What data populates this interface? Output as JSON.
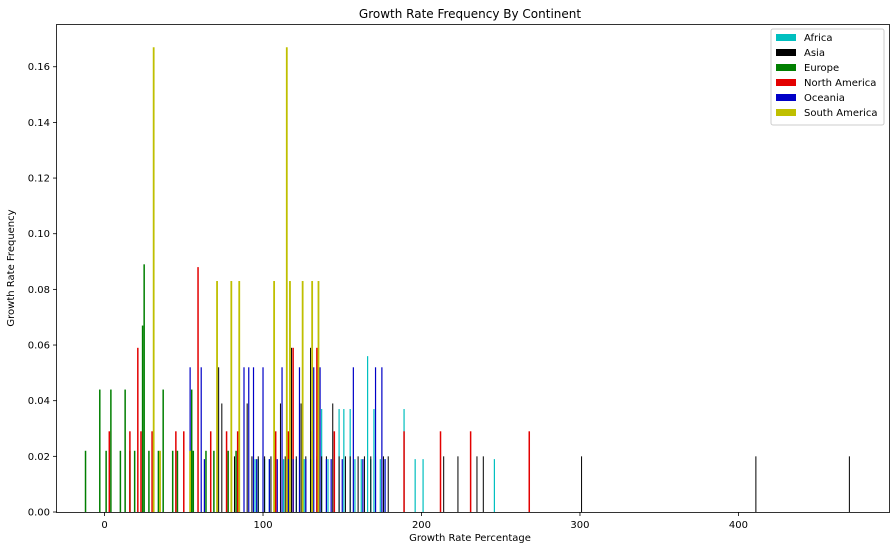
{
  "chart_data": {
    "type": "bar",
    "title": "Growth Rate Frequency By Continent",
    "xlabel": "Growth Rate Percentage",
    "ylabel": "Growth Rate Frequency",
    "xlim": [
      -30,
      495
    ],
    "ylim": [
      0,
      0.175
    ],
    "x_ticks": [
      0,
      100,
      200,
      300,
      400
    ],
    "y_ticks": [
      0.0,
      0.02,
      0.04,
      0.06,
      0.08,
      0.1,
      0.12,
      0.14,
      0.16
    ],
    "legend_position": "top-right",
    "grid": false,
    "series": [
      {
        "name": "Africa",
        "color": "#00bfbf",
        "width": 1.2,
        "points": [
          [
            95,
            0.019
          ],
          [
            97,
            0.019
          ],
          [
            101,
            0.019
          ],
          [
            104,
            0.019
          ],
          [
            108,
            0.019
          ],
          [
            113,
            0.019
          ],
          [
            117,
            0.019
          ],
          [
            121,
            0.019
          ],
          [
            126,
            0.019
          ],
          [
            130,
            0.019
          ],
          [
            134,
            0.019
          ],
          [
            137,
            0.037
          ],
          [
            141,
            0.019
          ],
          [
            145,
            0.019
          ],
          [
            148,
            0.037
          ],
          [
            151,
            0.037
          ],
          [
            155,
            0.037
          ],
          [
            158,
            0.019
          ],
          [
            162,
            0.019
          ],
          [
            166,
            0.056
          ],
          [
            168,
            0.019
          ],
          [
            170,
            0.037
          ],
          [
            174,
            0.019
          ],
          [
            177,
            0.019
          ],
          [
            189,
            0.037
          ],
          [
            196,
            0.019
          ],
          [
            201,
            0.019
          ],
          [
            246,
            0.019
          ]
        ]
      },
      {
        "name": "Asia",
        "color": "#000000",
        "width": 1.0,
        "points": [
          [
            72,
            0.052
          ],
          [
            74,
            0.039
          ],
          [
            82,
            0.02
          ],
          [
            85,
            0.052
          ],
          [
            90,
            0.039
          ],
          [
            93,
            0.02
          ],
          [
            97,
            0.02
          ],
          [
            101,
            0.02
          ],
          [
            105,
            0.02
          ],
          [
            108,
            0.02
          ],
          [
            111,
            0.039
          ],
          [
            114,
            0.02
          ],
          [
            118,
            0.059
          ],
          [
            121,
            0.02
          ],
          [
            124,
            0.039
          ],
          [
            127,
            0.02
          ],
          [
            130,
            0.059
          ],
          [
            134,
            0.02
          ],
          [
            137,
            0.02
          ],
          [
            140,
            0.02
          ],
          [
            144,
            0.039
          ],
          [
            148,
            0.02
          ],
          [
            152,
            0.02
          ],
          [
            155,
            0.02
          ],
          [
            160,
            0.02
          ],
          [
            164,
            0.02
          ],
          [
            168,
            0.02
          ],
          [
            171,
            0.02
          ],
          [
            176,
            0.02
          ],
          [
            179,
            0.02
          ],
          [
            214,
            0.02
          ],
          [
            223,
            0.02
          ],
          [
            235,
            0.02
          ],
          [
            239,
            0.02
          ],
          [
            301,
            0.02
          ],
          [
            411,
            0.02
          ],
          [
            470,
            0.02
          ]
        ]
      },
      {
        "name": "Europe",
        "color": "#007f00",
        "width": 1.5,
        "points": [
          [
            -12,
            0.022
          ],
          [
            -3,
            0.044
          ],
          [
            1,
            0.022
          ],
          [
            4,
            0.044
          ],
          [
            10,
            0.022
          ],
          [
            13,
            0.044
          ],
          [
            16,
            0.022
          ],
          [
            19,
            0.022
          ],
          [
            24,
            0.067
          ],
          [
            25,
            0.089
          ],
          [
            28,
            0.022
          ],
          [
            34,
            0.022
          ],
          [
            37,
            0.044
          ],
          [
            43,
            0.022
          ],
          [
            46,
            0.022
          ],
          [
            55,
            0.044
          ],
          [
            56,
            0.022
          ],
          [
            64,
            0.022
          ],
          [
            69,
            0.022
          ],
          [
            78,
            0.022
          ],
          [
            80,
            0.022
          ],
          [
            83,
            0.022
          ]
        ]
      },
      {
        "name": "North America",
        "color": "#e30000",
        "width": 1.5,
        "points": [
          [
            3,
            0.029
          ],
          [
            16,
            0.029
          ],
          [
            21,
            0.059
          ],
          [
            23,
            0.029
          ],
          [
            30,
            0.029
          ],
          [
            45,
            0.029
          ],
          [
            50,
            0.029
          ],
          [
            59,
            0.088
          ],
          [
            67,
            0.029
          ],
          [
            77,
            0.029
          ],
          [
            84,
            0.029
          ],
          [
            108,
            0.029
          ],
          [
            116,
            0.029
          ],
          [
            119,
            0.059
          ],
          [
            131,
            0.029
          ],
          [
            134,
            0.059
          ],
          [
            145,
            0.029
          ],
          [
            189,
            0.029
          ],
          [
            212,
            0.029
          ],
          [
            231,
            0.029
          ],
          [
            268,
            0.029
          ]
        ]
      },
      {
        "name": "Oceania",
        "color": "#0000c7",
        "width": 1.2,
        "points": [
          [
            54,
            0.052
          ],
          [
            61,
            0.052
          ],
          [
            63,
            0.019
          ],
          [
            88,
            0.052
          ],
          [
            91,
            0.052
          ],
          [
            94,
            0.052
          ],
          [
            96,
            0.019
          ],
          [
            100,
            0.052
          ],
          [
            104,
            0.019
          ],
          [
            109,
            0.019
          ],
          [
            112,
            0.052
          ],
          [
            116,
            0.019
          ],
          [
            119,
            0.019
          ],
          [
            123,
            0.052
          ],
          [
            127,
            0.019
          ],
          [
            132,
            0.052
          ],
          [
            136,
            0.052
          ],
          [
            140,
            0.019
          ],
          [
            143,
            0.019
          ],
          [
            150,
            0.019
          ],
          [
            157,
            0.052
          ],
          [
            163,
            0.019
          ],
          [
            171,
            0.052
          ],
          [
            175,
            0.052
          ],
          [
            177,
            0.019
          ]
        ]
      },
      {
        "name": "South America",
        "color": "#bfbf00",
        "width": 1.8,
        "points": [
          [
            31,
            0.167
          ],
          [
            35,
            0.022
          ],
          [
            54,
            0.022
          ],
          [
            71,
            0.083
          ],
          [
            80,
            0.083
          ],
          [
            85,
            0.083
          ],
          [
            107,
            0.083
          ],
          [
            115,
            0.167
          ],
          [
            117,
            0.083
          ],
          [
            125,
            0.083
          ],
          [
            131,
            0.083
          ],
          [
            135,
            0.083
          ]
        ]
      }
    ]
  }
}
